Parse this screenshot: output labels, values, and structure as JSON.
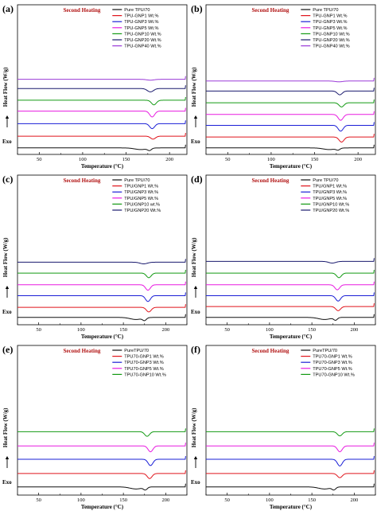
{
  "figure": {
    "background": "#ffffff"
  },
  "colors": {
    "black": "#111111",
    "red": "#e0141b",
    "blue": "#1a1fd6",
    "magenta": "#e81ae0",
    "green": "#139a13",
    "navy": "#1a1a6e",
    "purple": "#9a3ad8"
  },
  "chart_data": [
    {
      "panel": "(a)",
      "type": "line",
      "title": "Second Heating",
      "xlabel": "Temperature (°C)",
      "ylabel": "Heat Flow (W/g)",
      "exo_label": "Exo",
      "xlim": [
        25,
        220
      ],
      "xticks": [
        50,
        100,
        150,
        200
      ],
      "legend_position": "top-right",
      "series": [
        {
          "name": "Pure TPU/70",
          "color": "#111111",
          "baseline": 0.04,
          "dips": [
            {
              "x": 167,
              "depth": 0.02,
              "width": 10
            },
            {
              "x": 177,
              "depth": 0.025,
              "width": 3
            }
          ]
        },
        {
          "name": "TPU-GNP1 Wt.%",
          "color": "#e0141b",
          "baseline": 0.18,
          "dips": [
            {
              "x": 181,
              "depth": 0.035,
              "width": 4
            }
          ]
        },
        {
          "name": "TPU-GNP3 Wt.%",
          "color": "#1a1fd6",
          "baseline": 0.33,
          "dips": [
            {
              "x": 180,
              "depth": 0.06,
              "width": 4
            }
          ]
        },
        {
          "name": "TPU-GNP5 Wt.%",
          "color": "#e81ae0",
          "baseline": 0.48,
          "dips": [
            {
              "x": 180,
              "depth": 0.07,
              "width": 4
            }
          ]
        },
        {
          "name": "TPU-GNP10 Wt.%",
          "color": "#139a13",
          "baseline": 0.61,
          "dips": [
            {
              "x": 182,
              "depth": 0.055,
              "width": 4
            }
          ]
        },
        {
          "name": "TPU-GNP20 Wt.%",
          "color": "#1a1a6e",
          "baseline": 0.75,
          "dips": [
            {
              "x": 178,
              "depth": 0.04,
              "width": 5
            }
          ]
        },
        {
          "name": "TPU-GNP40 Wt.%",
          "color": "#9a3ad8",
          "baseline": 0.86,
          "dips": [
            {
              "x": 178,
              "depth": 0.01,
              "width": 6
            }
          ]
        }
      ]
    },
    {
      "panel": "(b)",
      "type": "line",
      "title": "Second Heating",
      "xlabel": "Temperature (°C)",
      "ylabel": "Heat Flow (W/g)",
      "exo_label": "Exo",
      "xlim": [
        25,
        220
      ],
      "xticks": [
        50,
        100,
        150,
        200
      ],
      "legend_position": "top-right",
      "series": [
        {
          "name": "Pure TPU/70",
          "color": "#111111",
          "baseline": 0.04,
          "dips": [
            {
              "x": 167,
              "depth": 0.02,
              "width": 10
            },
            {
              "x": 177,
              "depth": 0.02,
              "width": 3
            }
          ]
        },
        {
          "name": "TPU-GNP1 Wt.%",
          "color": "#e0141b",
          "baseline": 0.17,
          "dips": [
            {
              "x": 181,
              "depth": 0.06,
              "width": 4
            }
          ]
        },
        {
          "name": "TPU-GNP3 Wt.%",
          "color": "#1a1fd6",
          "baseline": 0.31,
          "dips": [
            {
              "x": 180,
              "depth": 0.07,
              "width": 4
            }
          ]
        },
        {
          "name": "TPU-GNP5 Wt.%",
          "color": "#e81ae0",
          "baseline": 0.44,
          "dips": [
            {
              "x": 180,
              "depth": 0.07,
              "width": 4
            }
          ]
        },
        {
          "name": "TPU-GNP10 Wt.%",
          "color": "#139a13",
          "baseline": 0.58,
          "dips": [
            {
              "x": 181,
              "depth": 0.05,
              "width": 4
            }
          ]
        },
        {
          "name": "TPU-GNP20 Wt.%",
          "color": "#1a1a6e",
          "baseline": 0.72,
          "dips": [
            {
              "x": 179,
              "depth": 0.045,
              "width": 4
            }
          ]
        },
        {
          "name": "TPU-GNP40 Wt.%",
          "color": "#9a3ad8",
          "baseline": 0.84,
          "dips": [
            {
              "x": 178,
              "depth": 0.01,
              "width": 6
            }
          ]
        }
      ]
    },
    {
      "panel": "(c)",
      "type": "line",
      "title": "Second Heating",
      "xlabel": "Temperature (°C)",
      "ylabel": "Heat Flow (W/g)",
      "exo_label": "Exo",
      "xlim": [
        25,
        225
      ],
      "xticks": [
        50,
        100,
        150,
        200
      ],
      "legend_position": "top-right",
      "series": [
        {
          "name": "Pure TPU/70",
          "color": "#111111",
          "baseline": 0.05,
          "dips": [
            {
              "x": 165,
              "depth": 0.025,
              "width": 10
            },
            {
              "x": 175,
              "depth": 0.03,
              "width": 3
            }
          ]
        },
        {
          "name": "TPU/GNP1 Wt.%",
          "color": "#e0141b",
          "baseline": 0.17,
          "dips": [
            {
              "x": 180,
              "depth": 0.055,
              "width": 4
            }
          ]
        },
        {
          "name": "TPU/GNP3 Wt.%",
          "color": "#1a1fd6",
          "baseline": 0.31,
          "dips": [
            {
              "x": 179,
              "depth": 0.07,
              "width": 4
            }
          ]
        },
        {
          "name": "TPU/GNP5 Wt.%",
          "color": "#e81ae0",
          "baseline": 0.44,
          "dips": [
            {
              "x": 179,
              "depth": 0.065,
              "width": 4
            }
          ]
        },
        {
          "name": "TPU/GNP10 wt.%",
          "color": "#139a13",
          "baseline": 0.58,
          "dips": [
            {
              "x": 180,
              "depth": 0.055,
              "width": 4
            }
          ]
        },
        {
          "name": "TPU/GNP20 Wt.%",
          "color": "#1a1a6e",
          "baseline": 0.71,
          "dips": [
            {
              "x": 174,
              "depth": 0.02,
              "width": 6
            }
          ]
        }
      ]
    },
    {
      "panel": "(d)",
      "type": "line",
      "title": "Second Heating",
      "xlabel": "Temperature (°C)",
      "ylabel": "Heat Flow (W/g)",
      "exo_label": "Exo",
      "xlim": [
        25,
        225
      ],
      "xticks": [
        50,
        100,
        150,
        200
      ],
      "legend_position": "top-right",
      "series": [
        {
          "name": "Pure TPU/70",
          "color": "#111111",
          "baseline": 0.05,
          "dips": [
            {
              "x": 165,
              "depth": 0.025,
              "width": 10
            },
            {
              "x": 178,
              "depth": 0.03,
              "width": 3
            }
          ]
        },
        {
          "name": "TPU/GNP1 Wt.%",
          "color": "#e0141b",
          "baseline": 0.18,
          "dips": [
            {
              "x": 181,
              "depth": 0.05,
              "width": 4
            }
          ]
        },
        {
          "name": "TPU/GNP3 Wt.%",
          "color": "#1a1fd6",
          "baseline": 0.31,
          "dips": [
            {
              "x": 181,
              "depth": 0.065,
              "width": 4
            }
          ]
        },
        {
          "name": "TPU/GNP5 Wt.%",
          "color": "#e81ae0",
          "baseline": 0.44,
          "dips": [
            {
              "x": 180,
              "depth": 0.06,
              "width": 4
            }
          ]
        },
        {
          "name": "TPU/GNP10 Wt.%",
          "color": "#139a13",
          "baseline": 0.58,
          "dips": [
            {
              "x": 182,
              "depth": 0.055,
              "width": 4
            }
          ]
        },
        {
          "name": "TPU/GNP20 Wt.%",
          "color": "#1a1a6e",
          "baseline": 0.72,
          "dips": [
            {
              "x": 174,
              "depth": 0.02,
              "width": 6
            }
          ]
        }
      ]
    },
    {
      "panel": "(e)",
      "type": "line",
      "title": "Second Heating",
      "xlabel": "Temperature (°C)",
      "ylabel": "Heat Flow (W/g)",
      "exo_label": "Exo",
      "xlim": [
        25,
        225
      ],
      "xticks": [
        50,
        100,
        150,
        200
      ],
      "legend_position": "top-right",
      "series": [
        {
          "name": "PureTPU/70",
          "color": "#111111",
          "baseline": 0.06,
          "dips": [
            {
              "x": 165,
              "depth": 0.025,
              "width": 10
            },
            {
              "x": 176,
              "depth": 0.03,
              "width": 3
            }
          ]
        },
        {
          "name": "TPU70-GNP1 Wt.%",
          "color": "#e0141b",
          "baseline": 0.22,
          "dips": [
            {
              "x": 181,
              "depth": 0.06,
              "width": 4
            }
          ]
        },
        {
          "name": "TPU70-GNP3 Wt.%",
          "color": "#1a1fd6",
          "baseline": 0.39,
          "dips": [
            {
              "x": 182,
              "depth": 0.075,
              "width": 4
            }
          ]
        },
        {
          "name": "TPU70-GNP5 Wt.%",
          "color": "#e81ae0",
          "baseline": 0.55,
          "dips": [
            {
              "x": 182,
              "depth": 0.07,
              "width": 4
            }
          ]
        },
        {
          "name": "TPU70-GNP10 Wt.%",
          "color": "#139a13",
          "baseline": 0.72,
          "dips": [
            {
              "x": 178,
              "depth": 0.055,
              "width": 4
            }
          ]
        }
      ]
    },
    {
      "panel": "(f)",
      "type": "line",
      "title": "Second Heating",
      "xlabel": "Temperature (°C)",
      "ylabel": "Heat Flow (W/g)",
      "exo_label": "Exo",
      "xlim": [
        25,
        225
      ],
      "xticks": [
        50,
        100,
        150,
        200
      ],
      "legend_position": "top-right",
      "series": [
        {
          "name": "PureTPU/70",
          "color": "#111111",
          "baseline": 0.06,
          "dips": [
            {
              "x": 165,
              "depth": 0.025,
              "width": 10
            },
            {
              "x": 176,
              "depth": 0.03,
              "width": 3
            }
          ]
        },
        {
          "name": "TPU70-GNP1 Wt.%",
          "color": "#e0141b",
          "baseline": 0.22,
          "dips": [
            {
              "x": 183,
              "depth": 0.05,
              "width": 4
            }
          ]
        },
        {
          "name": "TPU70-GNP3 Wt.%",
          "color": "#1a1fd6",
          "baseline": 0.39,
          "dips": [
            {
              "x": 183,
              "depth": 0.08,
              "width": 4
            }
          ]
        },
        {
          "name": "TPU70-GNP5 Wt.%",
          "color": "#e81ae0",
          "baseline": 0.55,
          "dips": [
            {
              "x": 183,
              "depth": 0.07,
              "width": 4
            }
          ]
        },
        {
          "name": "TPU70-GNP10 Wt.%",
          "color": "#139a13",
          "baseline": 0.72,
          "dips": [
            {
              "x": 183,
              "depth": 0.05,
              "width": 4
            }
          ]
        }
      ]
    }
  ]
}
